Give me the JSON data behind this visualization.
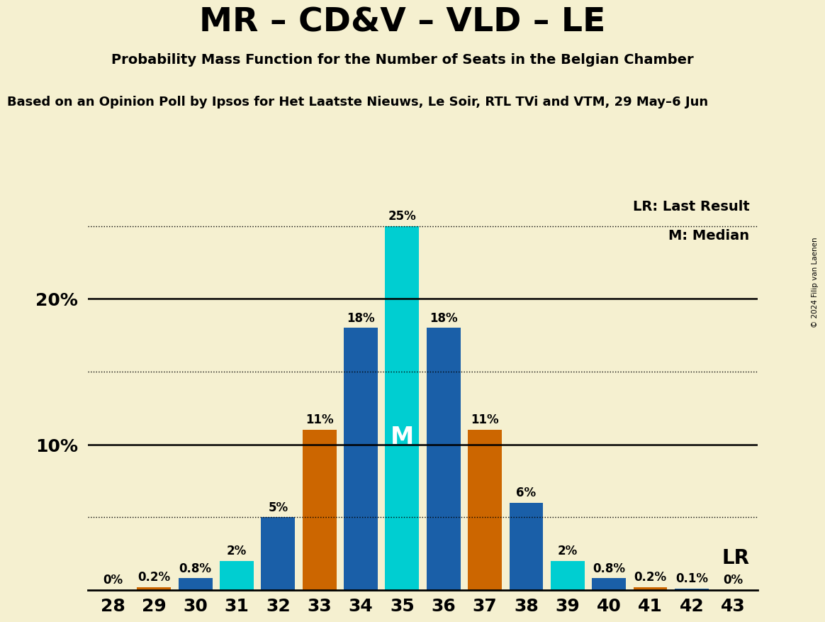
{
  "title": "MR – CD&V – VLD – LE",
  "subtitle": "Probability Mass Function for the Number of Seats in the Belgian Chamber",
  "subtitle2": "Based on an Opinion Poll by Ipsos for Het Laatste Nieuws, Le Soir, RTL TVi and VTM, 29 May–6 Jun",
  "copyright": "© 2024 Filip van Laenen",
  "legend_lr": "LR: Last Result",
  "legend_m": "M: Median",
  "lr_label": "LR",
  "m_label": "M",
  "seats": [
    28,
    29,
    30,
    31,
    32,
    33,
    34,
    35,
    36,
    37,
    38,
    39,
    40,
    41,
    42,
    43
  ],
  "probabilities": [
    0.0,
    0.2,
    0.8,
    2.0,
    5.0,
    11.0,
    18.0,
    25.0,
    18.0,
    11.0,
    6.0,
    2.0,
    0.8,
    0.2,
    0.1,
    0.0
  ],
  "bar_labels": [
    "0%",
    "0.2%",
    "0.8%",
    "2%",
    "5%",
    "11%",
    "18%",
    "25%",
    "18%",
    "11%",
    "6%",
    "2%",
    "0.8%",
    "0.2%",
    "0.1%",
    "0%"
  ],
  "median_seat": 35,
  "color_median": "#00CED1",
  "color_lr": "#CC6600",
  "color_normal": "#1A5FA8",
  "orange_seats": [
    29,
    33,
    37,
    41
  ],
  "cyan_seats": [
    31,
    39
  ],
  "solid_yticks": [
    10,
    20
  ],
  "dotted_yticks": [
    5,
    15,
    25
  ],
  "ylim": [
    0,
    27
  ],
  "background_color": "#F5F0D0"
}
